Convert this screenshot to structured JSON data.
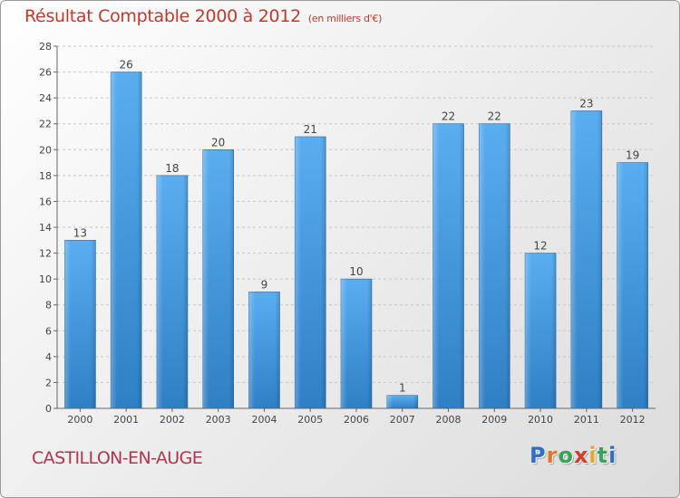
{
  "header": {
    "title": "Résultat Comptable 2000 à 2012",
    "subtitle": "(en milliers d'€)"
  },
  "footer": {
    "location": "CASTILLON-EN-AUGE",
    "logo_letters": [
      {
        "ch": "P",
        "color": "#2f6fc4"
      },
      {
        "ch": "r",
        "color": "#e8732a"
      },
      {
        "ch": "o",
        "color": "#3aa35a"
      },
      {
        "ch": "x",
        "color": "#d43b2f"
      },
      {
        "ch": "i",
        "color": "#e8a52a"
      },
      {
        "ch": "t",
        "color": "#3aa35a"
      },
      {
        "ch": "i",
        "color": "#2f6fc4"
      }
    ]
  },
  "chart_data": {
    "type": "bar",
    "categories": [
      "2000",
      "2001",
      "2002",
      "2003",
      "2004",
      "2005",
      "2006",
      "2007",
      "2008",
      "2009",
      "2010",
      "2011",
      "2012"
    ],
    "values": [
      13,
      26,
      18,
      20,
      9,
      21,
      10,
      1,
      22,
      22,
      12,
      23,
      19
    ],
    "title": "Résultat Comptable 2000 à 2012",
    "xlabel": "",
    "ylabel": "",
    "ylim": [
      0,
      28
    ],
    "yticks": [
      0,
      2,
      4,
      6,
      8,
      10,
      12,
      14,
      16,
      18,
      20,
      22,
      24,
      26,
      28
    ],
    "grid": true,
    "legend": "none",
    "bar_color": "#3d8fd6"
  }
}
